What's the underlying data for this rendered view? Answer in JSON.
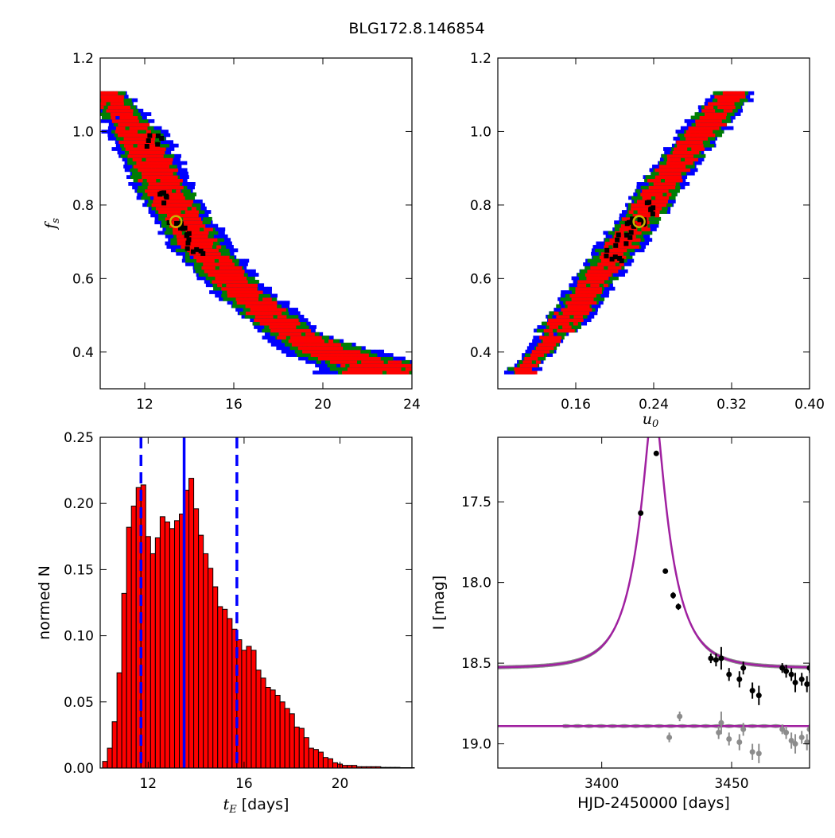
{
  "title": "BLG172.8.146854",
  "chart_data": [
    {
      "type": "heatmap",
      "panel": "top-left",
      "xlabel": "",
      "ylabel": "f_s",
      "xlim": [
        10,
        24
      ],
      "ylim": [
        0.3,
        1.2
      ],
      "xticks": [
        "12",
        "16",
        "20",
        "24"
      ],
      "yticks": [
        "0.4",
        "0.6",
        "0.8",
        "1.0",
        "1.2"
      ],
      "colors": {
        "outer": "#0000ff",
        "middle": "#007f00",
        "inner": "#ff0000",
        "core": "#000000",
        "best": "#c8b400"
      },
      "ridge": [
        [
          10.2,
          1.1
        ],
        [
          11.5,
          1.0
        ],
        [
          13.0,
          0.82
        ],
        [
          14.5,
          0.68
        ],
        [
          16.5,
          0.55
        ],
        [
          18.5,
          0.45
        ],
        [
          20.5,
          0.39
        ],
        [
          22.8,
          0.35
        ]
      ],
      "core_points": [
        [
          12.5,
          0.97
        ],
        [
          13.0,
          0.82
        ],
        [
          13.4,
          0.75
        ],
        [
          13.8,
          0.72
        ],
        [
          14.3,
          0.68
        ]
      ],
      "best_fit": [
        13.4,
        0.755
      ]
    },
    {
      "type": "heatmap",
      "panel": "top-right",
      "xlabel": "u_0",
      "ylabel": "",
      "xlim": [
        0.08,
        0.4
      ],
      "ylim": [
        0.3,
        1.2
      ],
      "xticks": [
        "0.16",
        "0.24",
        "0.32",
        "0.40"
      ],
      "yticks": [
        "0.4",
        "0.6",
        "0.8",
        "1.0",
        "1.2"
      ],
      "ridge": [
        [
          0.105,
          0.35
        ],
        [
          0.13,
          0.42
        ],
        [
          0.16,
          0.52
        ],
        [
          0.19,
          0.63
        ],
        [
          0.225,
          0.76
        ],
        [
          0.26,
          0.9
        ],
        [
          0.29,
          1.0
        ],
        [
          0.32,
          1.1
        ]
      ],
      "core_points": [
        [
          0.21,
          0.7
        ],
        [
          0.22,
          0.74
        ],
        [
          0.225,
          0.76
        ],
        [
          0.235,
          0.79
        ],
        [
          0.2,
          0.66
        ]
      ],
      "best_fit": [
        0.225,
        0.755
      ]
    },
    {
      "type": "bar",
      "panel": "bottom-left",
      "xlabel": "t_E  [days]",
      "ylabel": "normed N",
      "xlim": [
        10,
        23
      ],
      "ylim": [
        0,
        0.25
      ],
      "xticks": [
        "12",
        "16",
        "20"
      ],
      "yticks": [
        "0.00",
        "0.05",
        "0.10",
        "0.15",
        "0.20",
        "0.25"
      ],
      "bin_width": 0.2,
      "bin_start": 10.1,
      "values": [
        0.005,
        0.015,
        0.035,
        0.072,
        0.132,
        0.182,
        0.198,
        0.212,
        0.214,
        0.175,
        0.162,
        0.174,
        0.19,
        0.186,
        0.181,
        0.187,
        0.192,
        0.21,
        0.219,
        0.196,
        0.176,
        0.162,
        0.151,
        0.137,
        0.122,
        0.12,
        0.113,
        0.105,
        0.097,
        0.089,
        0.092,
        0.089,
        0.074,
        0.068,
        0.061,
        0.059,
        0.055,
        0.05,
        0.045,
        0.041,
        0.031,
        0.03,
        0.023,
        0.015,
        0.014,
        0.012,
        0.008,
        0.007,
        0.004,
        0.003,
        0.002,
        0.002,
        0.002,
        0.001,
        0.001,
        0.001,
        0.001,
        0.001,
        0.0005,
        0.0005,
        0.0005,
        0.0005,
        0.0003,
        0.0003,
        0.0003
      ],
      "bar_color": "#ff0000",
      "vlines": {
        "median": 13.5,
        "lower": 11.7,
        "upper": 15.7,
        "color": "#0000ff"
      }
    },
    {
      "type": "line",
      "panel": "bottom-right",
      "xlabel": "HJD-2450000 [days]",
      "ylabel": "I [mag]",
      "xlim": [
        3360,
        3480
      ],
      "ylim": [
        19.15,
        17.1
      ],
      "xticks": [
        "3400",
        "3450"
      ],
      "yticks": [
        "17.5",
        "18.0",
        "18.5",
        "19.0"
      ],
      "model": {
        "t0": 3420.0,
        "tE": 13.4,
        "u0": 0.225,
        "baseline": 18.53,
        "color": "#a020a0"
      },
      "residual_baseline": 18.89,
      "data_points": [
        {
          "t": 3415.0,
          "mag": 17.57,
          "err": 0.01
        },
        {
          "t": 3421.0,
          "mag": 17.2,
          "err": 0.01
        },
        {
          "t": 3424.5,
          "mag": 17.93,
          "err": 0.015
        },
        {
          "t": 3427.5,
          "mag": 18.08,
          "err": 0.02
        },
        {
          "t": 3429.5,
          "mag": 18.15,
          "err": 0.02
        },
        {
          "t": 3442.0,
          "mag": 18.47,
          "err": 0.03
        },
        {
          "t": 3444.0,
          "mag": 18.48,
          "err": 0.04
        },
        {
          "t": 3446.0,
          "mag": 18.47,
          "err": 0.07
        },
        {
          "t": 3449.0,
          "mag": 18.57,
          "err": 0.04
        },
        {
          "t": 3453.0,
          "mag": 18.6,
          "err": 0.05
        },
        {
          "t": 3454.5,
          "mag": 18.53,
          "err": 0.04
        },
        {
          "t": 3458.0,
          "mag": 18.67,
          "err": 0.05
        },
        {
          "t": 3460.5,
          "mag": 18.7,
          "err": 0.06
        },
        {
          "t": 3469.5,
          "mag": 18.53,
          "err": 0.03
        },
        {
          "t": 3471.0,
          "mag": 18.55,
          "err": 0.04
        },
        {
          "t": 3473.0,
          "mag": 18.57,
          "err": 0.04
        },
        {
          "t": 3474.5,
          "mag": 18.62,
          "err": 0.06
        },
        {
          "t": 3477.0,
          "mag": 18.6,
          "err": 0.04
        },
        {
          "t": 3479.0,
          "mag": 18.63,
          "err": 0.05
        },
        {
          "t": 3480.0,
          "mag": 18.53,
          "err": 0.03
        }
      ],
      "residual_points": [
        {
          "t": 3426.0,
          "mag": 18.96,
          "err": 0.03
        },
        {
          "t": 3430.0,
          "mag": 18.83,
          "err": 0.03
        },
        {
          "t": 3445.0,
          "mag": 18.93,
          "err": 0.04
        },
        {
          "t": 3446.0,
          "mag": 18.87,
          "err": 0.07
        },
        {
          "t": 3449.0,
          "mag": 18.97,
          "err": 0.04
        },
        {
          "t": 3453.0,
          "mag": 18.99,
          "err": 0.05
        },
        {
          "t": 3454.5,
          "mag": 18.91,
          "err": 0.04
        },
        {
          "t": 3458.0,
          "mag": 19.05,
          "err": 0.05
        },
        {
          "t": 3460.5,
          "mag": 19.06,
          "err": 0.06
        },
        {
          "t": 3469.5,
          "mag": 18.91,
          "err": 0.03
        },
        {
          "t": 3471.0,
          "mag": 18.93,
          "err": 0.04
        },
        {
          "t": 3473.0,
          "mag": 18.98,
          "err": 0.05
        },
        {
          "t": 3474.5,
          "mag": 19.0,
          "err": 0.06
        },
        {
          "t": 3477.0,
          "mag": 18.96,
          "err": 0.04
        },
        {
          "t": 3479.0,
          "mag": 18.99,
          "err": 0.05
        },
        {
          "t": 3480.0,
          "mag": 18.91,
          "err": 0.03
        }
      ]
    }
  ]
}
